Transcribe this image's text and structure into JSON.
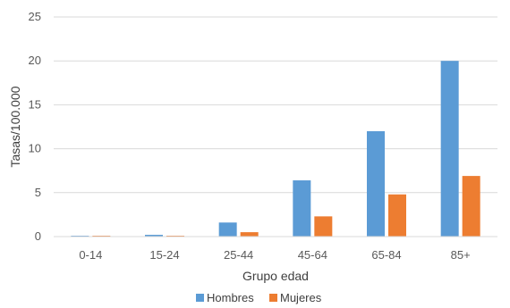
{
  "chart_data": {
    "type": "bar",
    "title": "",
    "xlabel": "Grupo edad",
    "ylabel": "Tasas/100.000",
    "categories": [
      "0-14",
      "15-24",
      "25-44",
      "45-64",
      "65-84",
      "85+"
    ],
    "series": [
      {
        "name": "Hombres",
        "color": "#5B9BD5",
        "values": [
          0.1,
          0.2,
          1.6,
          6.4,
          12.0,
          20.0
        ]
      },
      {
        "name": "Mujeres",
        "color": "#ED7D31",
        "values": [
          0.1,
          0.1,
          0.5,
          2.3,
          4.8,
          6.9
        ]
      }
    ],
    "ylim": [
      0,
      25
    ],
    "yticks": [
      0,
      5,
      10,
      15,
      20,
      25
    ],
    "grid": true,
    "legend_position": "bottom"
  }
}
